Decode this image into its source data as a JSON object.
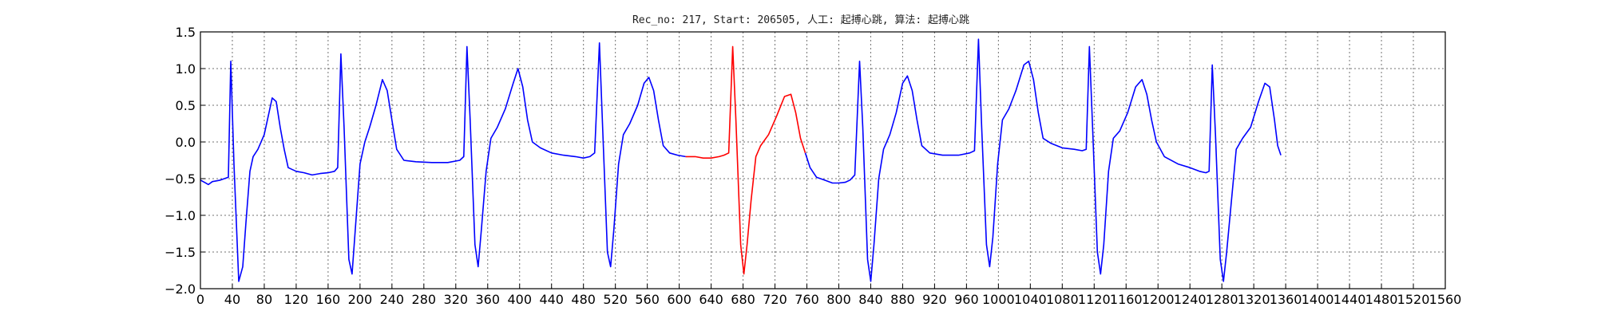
{
  "chart_data": {
    "type": "line",
    "title": "Rec_no: 217, Start: 206505, 人工: 起搏心跳, 算法: 起搏心跳",
    "xlabel": "",
    "ylabel": "",
    "xlim": [
      0,
      1560
    ],
    "ylim": [
      -2.0,
      1.5
    ],
    "grid": true,
    "yticks": [
      -2.0,
      -1.5,
      -1.0,
      -0.5,
      0.0,
      0.5,
      1.0,
      1.5
    ],
    "ytick_labels": [
      "−2.0",
      "−1.5",
      "−1.0",
      "−0.5",
      "0.0",
      "0.5",
      "1.0",
      "1.5"
    ],
    "xticks": [
      0,
      40,
      80,
      120,
      160,
      200,
      240,
      280,
      320,
      360,
      400,
      440,
      480,
      520,
      560,
      600,
      640,
      680,
      720,
      760,
      800,
      840,
      880,
      920,
      960,
      1000,
      1040,
      1080,
      1120,
      1160,
      1200,
      1240,
      1280,
      1320,
      1360,
      1400,
      1440,
      1480,
      1520,
      1560
    ],
    "xtick_labels": [
      "0",
      "40",
      "80",
      "120",
      "160",
      "200",
      "240",
      "280",
      "320",
      "360",
      "400",
      "440",
      "480",
      "520",
      "560",
      "600",
      "640",
      "680",
      "720",
      "760",
      "800",
      "840",
      "880",
      "920",
      "960",
      "1000",
      "1040",
      "1080",
      "1120",
      "1160",
      "1200",
      "1240",
      "1280",
      "1320",
      "1360",
      "1400",
      "1440",
      "1480",
      "1520",
      "1560"
    ],
    "series": [
      {
        "name": "",
        "color": "#0000ff",
        "points": [
          [
            0,
            -0.52
          ],
          [
            5,
            -0.55
          ],
          [
            10,
            -0.58
          ],
          [
            15,
            -0.54
          ],
          [
            20,
            -0.53
          ],
          [
            25,
            -0.52
          ],
          [
            30,
            -0.5
          ],
          [
            35,
            -0.48
          ],
          [
            38,
            1.1
          ],
          [
            42,
            -0.3
          ],
          [
            48,
            -1.9
          ],
          [
            53,
            -1.7
          ],
          [
            57,
            -1.1
          ],
          [
            62,
            -0.4
          ],
          [
            66,
            -0.2
          ],
          [
            72,
            -0.1
          ],
          [
            80,
            0.1
          ],
          [
            90,
            0.6
          ],
          [
            95,
            0.55
          ],
          [
            100,
            0.2
          ],
          [
            105,
            -0.1
          ],
          [
            110,
            -0.35
          ],
          [
            120,
            -0.4
          ],
          [
            130,
            -0.42
          ],
          [
            140,
            -0.45
          ],
          [
            150,
            -0.43
          ],
          [
            160,
            -0.42
          ],
          [
            168,
            -0.4
          ],
          [
            172,
            -0.35
          ],
          [
            176,
            1.2
          ],
          [
            180,
            0.2
          ],
          [
            186,
            -1.6
          ],
          [
            190,
            -1.8
          ],
          [
            194,
            -1.2
          ],
          [
            200,
            -0.3
          ],
          [
            206,
            0.0
          ],
          [
            212,
            0.2
          ],
          [
            220,
            0.5
          ],
          [
            228,
            0.85
          ],
          [
            234,
            0.7
          ],
          [
            240,
            0.3
          ],
          [
            246,
            -0.1
          ],
          [
            255,
            -0.25
          ],
          [
            270,
            -0.27
          ],
          [
            290,
            -0.28
          ],
          [
            310,
            -0.28
          ],
          [
            325,
            -0.25
          ],
          [
            330,
            -0.2
          ],
          [
            334,
            1.3
          ],
          [
            338,
            0.3
          ],
          [
            344,
            -1.4
          ],
          [
            348,
            -1.7
          ],
          [
            352,
            -1.2
          ],
          [
            358,
            -0.4
          ],
          [
            364,
            0.05
          ],
          [
            372,
            0.2
          ],
          [
            382,
            0.45
          ],
          [
            392,
            0.8
          ],
          [
            398,
            1.0
          ],
          [
            404,
            0.75
          ],
          [
            410,
            0.3
          ],
          [
            416,
            0.0
          ],
          [
            426,
            -0.08
          ],
          [
            440,
            -0.15
          ],
          [
            455,
            -0.18
          ],
          [
            470,
            -0.2
          ],
          [
            480,
            -0.22
          ],
          [
            488,
            -0.2
          ],
          [
            494,
            -0.15
          ],
          [
            500,
            1.35
          ],
          [
            504,
            0.2
          ],
          [
            510,
            -1.5
          ],
          [
            514,
            -1.7
          ],
          [
            518,
            -1.2
          ],
          [
            524,
            -0.3
          ],
          [
            530,
            0.1
          ],
          [
            538,
            0.25
          ],
          [
            548,
            0.5
          ],
          [
            556,
            0.8
          ],
          [
            562,
            0.88
          ],
          [
            568,
            0.7
          ],
          [
            574,
            0.3
          ],
          [
            580,
            -0.05
          ],
          [
            588,
            -0.15
          ],
          [
            598,
            -0.18
          ],
          [
            608,
            -0.2
          ]
        ]
      },
      {
        "name": "",
        "color": "#ff0000",
        "points": [
          [
            608,
            -0.2
          ],
          [
            620,
            -0.2
          ],
          [
            630,
            -0.22
          ],
          [
            640,
            -0.22
          ],
          [
            650,
            -0.2
          ],
          [
            656,
            -0.18
          ],
          [
            662,
            -0.15
          ],
          [
            667,
            1.3
          ],
          [
            671,
            0.3
          ],
          [
            677,
            -1.4
          ],
          [
            681,
            -1.8
          ],
          [
            685,
            -1.4
          ],
          [
            690,
            -0.8
          ],
          [
            696,
            -0.2
          ],
          [
            702,
            -0.05
          ],
          [
            712,
            0.1
          ],
          [
            722,
            0.35
          ],
          [
            732,
            0.62
          ],
          [
            740,
            0.65
          ],
          [
            746,
            0.4
          ],
          [
            752,
            0.05
          ],
          [
            758,
            -0.15
          ]
        ]
      },
      {
        "name": "",
        "color": "#0000ff",
        "points": [
          [
            758,
            -0.15
          ],
          [
            764,
            -0.35
          ],
          [
            772,
            -0.48
          ],
          [
            782,
            -0.52
          ],
          [
            792,
            -0.56
          ],
          [
            800,
            -0.56
          ],
          [
            808,
            -0.55
          ],
          [
            814,
            -0.52
          ],
          [
            820,
            -0.45
          ],
          [
            826,
            1.1
          ],
          [
            830,
            0.2
          ],
          [
            836,
            -1.6
          ],
          [
            840,
            -1.9
          ],
          [
            844,
            -1.4
          ],
          [
            850,
            -0.5
          ],
          [
            856,
            -0.1
          ],
          [
            864,
            0.1
          ],
          [
            872,
            0.4
          ],
          [
            880,
            0.8
          ],
          [
            886,
            0.9
          ],
          [
            892,
            0.7
          ],
          [
            898,
            0.3
          ],
          [
            904,
            -0.05
          ],
          [
            914,
            -0.15
          ],
          [
            930,
            -0.18
          ],
          [
            950,
            -0.18
          ],
          [
            964,
            -0.15
          ],
          [
            970,
            -0.12
          ],
          [
            975,
            1.4
          ],
          [
            979,
            0.2
          ],
          [
            985,
            -1.4
          ],
          [
            989,
            -1.7
          ],
          [
            993,
            -1.3
          ],
          [
            999,
            -0.3
          ],
          [
            1005,
            0.3
          ],
          [
            1013,
            0.45
          ],
          [
            1022,
            0.7
          ],
          [
            1032,
            1.05
          ],
          [
            1038,
            1.1
          ],
          [
            1044,
            0.85
          ],
          [
            1050,
            0.4
          ],
          [
            1056,
            0.05
          ],
          [
            1066,
            -0.02
          ],
          [
            1080,
            -0.08
          ],
          [
            1095,
            -0.1
          ],
          [
            1105,
            -0.12
          ],
          [
            1110,
            -0.1
          ],
          [
            1114,
            1.3
          ],
          [
            1118,
            0.2
          ],
          [
            1124,
            -1.5
          ],
          [
            1128,
            -1.8
          ],
          [
            1132,
            -1.4
          ],
          [
            1138,
            -0.4
          ],
          [
            1144,
            0.05
          ],
          [
            1152,
            0.15
          ],
          [
            1162,
            0.4
          ],
          [
            1172,
            0.75
          ],
          [
            1180,
            0.85
          ],
          [
            1186,
            0.65
          ],
          [
            1192,
            0.3
          ],
          [
            1198,
            0.0
          ],
          [
            1208,
            -0.2
          ],
          [
            1225,
            -0.3
          ],
          [
            1240,
            -0.35
          ],
          [
            1252,
            -0.4
          ],
          [
            1260,
            -0.42
          ],
          [
            1264,
            -0.4
          ],
          [
            1268,
            1.05
          ],
          [
            1272,
            0.1
          ],
          [
            1278,
            -1.6
          ],
          [
            1282,
            -1.9
          ],
          [
            1286,
            -1.5
          ],
          [
            1292,
            -0.8
          ],
          [
            1298,
            -0.1
          ],
          [
            1306,
            0.05
          ],
          [
            1316,
            0.2
          ],
          [
            1326,
            0.55
          ],
          [
            1334,
            0.8
          ],
          [
            1340,
            0.75
          ],
          [
            1346,
            0.3
          ],
          [
            1350,
            -0.05
          ],
          [
            1354,
            -0.18
          ]
        ]
      }
    ]
  }
}
